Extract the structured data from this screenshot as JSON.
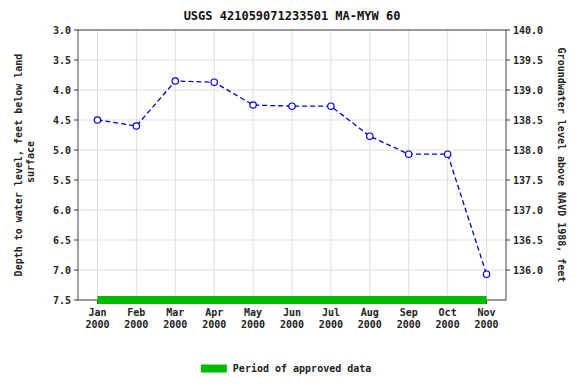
{
  "chart_data": {
    "type": "line",
    "title": "USGS 421059071233501 MA-MYW   60",
    "y_label": "Depth to water level, feet below land\n surface",
    "y2_label": "Groundwater level above NAVD 1988, feet",
    "categories": [
      "Jan\n2000",
      "Feb\n2000",
      "Mar\n2000",
      "Apr\n2000",
      "May\n2000",
      "Jun\n2000",
      "Jul\n2000",
      "Aug\n2000",
      "Sep\n2000",
      "Oct\n2000",
      "Nov\n2000"
    ],
    "series": [
      {
        "color": "#0000cc",
        "line_style": "dashed",
        "marker": "circle",
        "values": [
          4.5,
          4.6,
          3.85,
          3.87,
          4.25,
          4.27,
          4.27,
          4.77,
          5.07,
          5.07,
          7.07
        ]
      },
      {
        "name": "Period of approved data",
        "color": "#00bb00",
        "line_style": "solid",
        "marker": "none",
        "values": [
          7.5,
          7.5,
          7.5,
          7.5,
          7.5,
          7.5,
          7.5,
          7.5,
          7.5,
          7.5,
          7.5
        ]
      }
    ],
    "ylim": [
      7.5,
      3.0
    ],
    "yticks": [
      {
        "value": 3.0,
        "label": "3.0"
      },
      3.5,
      {
        "value": 4.0,
        "label": "4.0"
      },
      4.5,
      {
        "value": 5.0,
        "label": "5.0"
      },
      5.5,
      {
        "value": 6.0,
        "label": "6.0"
      },
      6.5,
      {
        "value": 7.0,
        "label": "7.0"
      },
      7.5
    ],
    "y2lim": [
      135.5,
      140.0
    ],
    "y2ticks": [
      {
        "value": 136.0,
        "label": "136.0"
      },
      136.5,
      {
        "value": 137.0,
        "label": "137.0"
      },
      137.5,
      {
        "value": 138.0,
        "label": "138.0"
      },
      138.5,
      {
        "value": 139.0,
        "label": "139.0"
      },
      139.5,
      {
        "value": 140.0,
        "label": "140.0"
      }
    ],
    "grid": true,
    "legend": "bottom"
  }
}
